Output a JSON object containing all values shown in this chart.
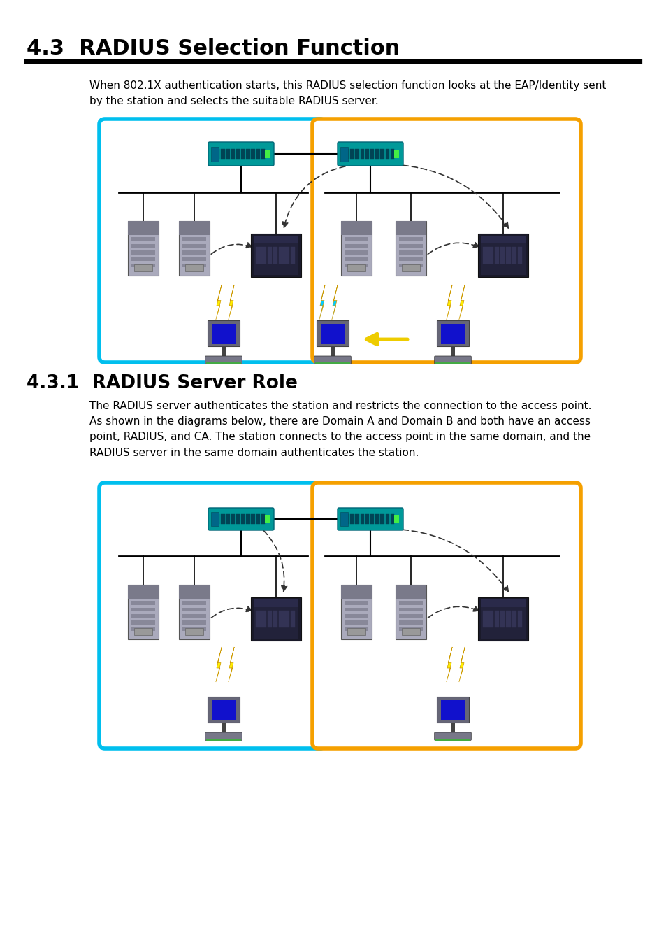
{
  "title": "4.3  RADIUS Selection Function",
  "title_fontsize": 22,
  "section_title": "4.3.1  RADIUS Server Role",
  "section_title_fontsize": 19,
  "body_text_1": "When 802.1X authentication starts, this RADIUS selection function looks at the EAP/Identity sent\nby the station and selects the suitable RADIUS server.",
  "body_text_2": "The RADIUS server authenticates the station and restricts the connection to the access point.\nAs shown in the diagrams below, there are Domain A and Domain B and both have an access\npoint, RADIUS, and CA. The station connects to the access point in the same domain, and the\nRADIUS server in the same domain authenticates the station.",
  "body_text_fontsize": 11.0,
  "page_bg": "#ffffff",
  "cyan_border": "#00bfee",
  "orange_border": "#f5a000",
  "border_lw": 4.0,
  "title_color": "#000000",
  "text_color": "#000000"
}
